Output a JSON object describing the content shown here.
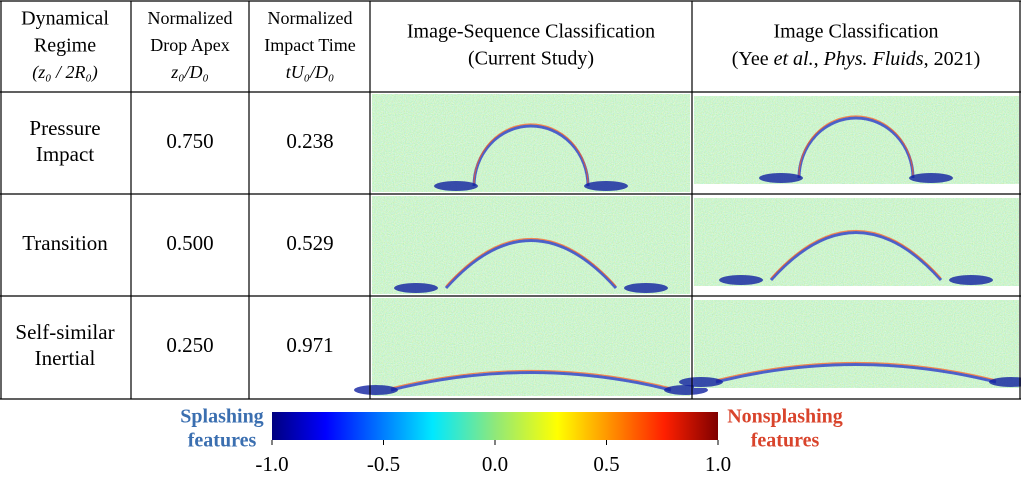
{
  "header": {
    "regime": [
      "Dynamical",
      "Regime",
      "(z₀ / 2R₀)"
    ],
    "apex": [
      "Normalized",
      "Drop Apex",
      "z₀/D₀"
    ],
    "time": [
      "Normalized",
      "Impact Time",
      "tU₀/D₀"
    ],
    "current": [
      "Image-Sequence Classification",
      "(Current Study)"
    ],
    "prior": {
      "title": "Image Classification",
      "citation": [
        "(Yee ",
        "et al.",
        ", ",
        "Phys. Fluids",
        ", 2021)"
      ]
    }
  },
  "rows": [
    {
      "regime": [
        "Pressure",
        "Impact"
      ],
      "apex": "0.750",
      "time": "0.238"
    },
    {
      "regime": [
        "Transition"
      ],
      "apex": "0.500",
      "time": "0.529"
    },
    {
      "regime": [
        "Self-similar",
        "Inertial"
      ],
      "apex": "0.250",
      "time": "0.971"
    }
  ],
  "colorbar": {
    "left_label": [
      "Splashing",
      "features"
    ],
    "right_label": [
      "Nonsplashing",
      "features"
    ],
    "lim": [
      -1,
      1
    ],
    "ticks": [
      {
        "value": -1,
        "label": "-1.0"
      },
      {
        "value": -0.5,
        "label": "-0.5"
      },
      {
        "value": 0,
        "label": "0.0"
      },
      {
        "value": 0.5,
        "label": "0.5"
      },
      {
        "value": 1,
        "label": "1.0"
      }
    ]
  }
}
